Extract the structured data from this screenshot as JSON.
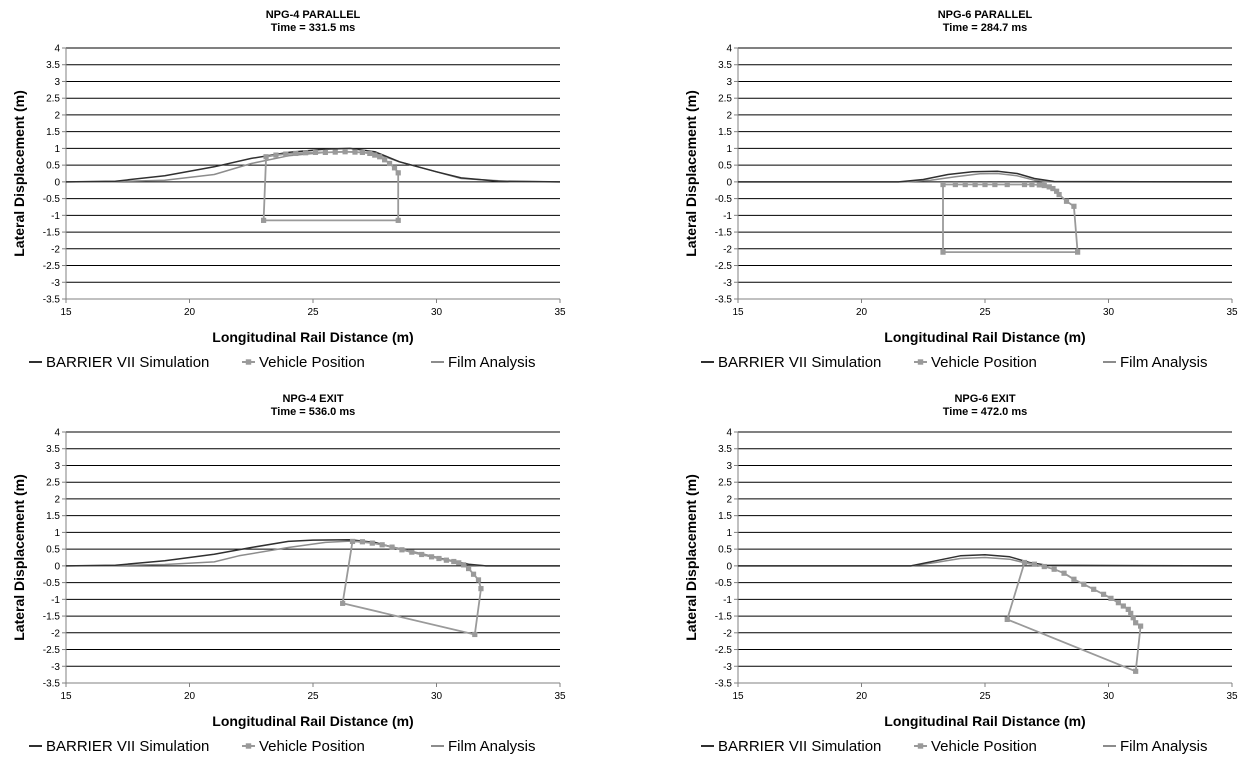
{
  "colors": {
    "simulation": "#303030",
    "vehicle": "#9a9a9a",
    "film": "#8c8c8c",
    "grid": "#000000",
    "axis": "#808080"
  },
  "chart_data": [
    {
      "type": "line",
      "title": "NPG-4 PARALLEL",
      "subtitle": "Time = 331.5 ms",
      "xlabel": "Longitudinal Rail Distance (m)",
      "ylabel": "Lateral Displacement (m)",
      "xlim": [
        15,
        35
      ],
      "ylim": [
        -3.5,
        4
      ],
      "x_ticks": [
        "15",
        "20",
        "25",
        "30",
        "35"
      ],
      "y_ticks": [
        "4",
        "3.5",
        "3",
        "2.5",
        "2",
        "1.5",
        "1",
        "0.5",
        "0",
        "-0.5",
        "-1",
        "-1.5",
        "-2",
        "-2.5",
        "-3",
        "-3.5"
      ],
      "grid": "horizontal",
      "legend_position": "bottom",
      "legend": [
        "BARRIER VII Simulation",
        "Vehicle Position",
        "Film Analysis"
      ],
      "series": [
        {
          "name": "BARRIER VII Simulation",
          "points": [
            [
              15,
              0
            ],
            [
              17,
              0.02
            ],
            [
              19,
              0.18
            ],
            [
              21,
              0.45
            ],
            [
              22.5,
              0.7
            ],
            [
              24,
              0.88
            ],
            [
              25.5,
              0.98
            ],
            [
              26.5,
              1.0
            ],
            [
              27.5,
              0.9
            ],
            [
              28.5,
              0.6
            ],
            [
              30,
              0.3
            ],
            [
              31,
              0.12
            ],
            [
              32.5,
              0.02
            ],
            [
              35,
              0
            ]
          ]
        },
        {
          "name": "Vehicle Position",
          "points": [
            [
              23.1,
              0.75
            ],
            [
              23.5,
              0.8
            ],
            [
              23.9,
              0.83
            ],
            [
              24.3,
              0.85
            ],
            [
              24.7,
              0.87
            ],
            [
              25.1,
              0.88
            ],
            [
              25.5,
              0.88
            ],
            [
              25.9,
              0.89
            ],
            [
              26.3,
              0.9
            ],
            [
              26.7,
              0.89
            ],
            [
              27.0,
              0.88
            ],
            [
              27.3,
              0.85
            ],
            [
              27.5,
              0.8
            ],
            [
              27.7,
              0.75
            ],
            [
              27.9,
              0.66
            ],
            [
              28.1,
              0.55
            ],
            [
              28.3,
              0.42
            ],
            [
              28.45,
              0.27
            ],
            [
              28.45,
              -1.15
            ],
            [
              23.0,
              -1.15
            ],
            [
              23.1,
              0.75
            ]
          ]
        },
        {
          "name": "Film Analysis",
          "points": [
            [
              15,
              0
            ],
            [
              17,
              0.01
            ],
            [
              19,
              0.05
            ],
            [
              21,
              0.22
            ],
            [
              22.5,
              0.55
            ],
            [
              24,
              0.78
            ],
            [
              25.5,
              0.88
            ],
            [
              26.5,
              0.9
            ],
            [
              27.5,
              0.85
            ],
            [
              28.5,
              0.6
            ],
            [
              30,
              0.3
            ],
            [
              31,
              0.1
            ],
            [
              33,
              0.01
            ],
            [
              35,
              0
            ]
          ]
        }
      ]
    },
    {
      "type": "line",
      "title": "NPG-6 PARALLEL",
      "subtitle": "Time = 284.7 ms",
      "xlabel": "Longitudinal Rail Distance (m)",
      "ylabel": "Lateral Displacement (m)",
      "xlim": [
        15,
        35
      ],
      "ylim": [
        -3.5,
        4
      ],
      "x_ticks": [
        "15",
        "20",
        "25",
        "30",
        "35"
      ],
      "y_ticks": [
        "4",
        "3.5",
        "3",
        "2.5",
        "2",
        "1.5",
        "1",
        "0.5",
        "0",
        "-0.5",
        "-1",
        "-1.5",
        "-2",
        "-2.5",
        "-3",
        "-3.5"
      ],
      "grid": "horizontal",
      "legend_position": "bottom",
      "legend": [
        "BARRIER VII Simulation",
        "Vehicle Position",
        "Film Analysis"
      ],
      "series": [
        {
          "name": "BARRIER VII Simulation",
          "points": [
            [
              15,
              0
            ],
            [
              21.5,
              0
            ],
            [
              22.5,
              0.07
            ],
            [
              23.5,
              0.22
            ],
            [
              24.5,
              0.3
            ],
            [
              25.5,
              0.32
            ],
            [
              26.3,
              0.25
            ],
            [
              27.0,
              0.1
            ],
            [
              27.8,
              0.01
            ],
            [
              35,
              0
            ]
          ]
        },
        {
          "name": "Vehicle Position",
          "points": [
            [
              23.3,
              -0.08
            ],
            [
              23.8,
              -0.08
            ],
            [
              24.2,
              -0.08
            ],
            [
              24.6,
              -0.08
            ],
            [
              25.0,
              -0.08
            ],
            [
              25.4,
              -0.08
            ],
            [
              25.9,
              -0.08
            ],
            [
              26.6,
              -0.08
            ],
            [
              26.9,
              -0.08
            ],
            [
              27.2,
              -0.09
            ],
            [
              27.4,
              -0.11
            ],
            [
              27.6,
              -0.15
            ],
            [
              27.75,
              -0.2
            ],
            [
              27.9,
              -0.28
            ],
            [
              28.0,
              -0.38
            ],
            [
              28.3,
              -0.58
            ],
            [
              28.6,
              -0.73
            ],
            [
              28.75,
              -2.1
            ],
            [
              23.3,
              -2.1
            ],
            [
              23.3,
              -0.08
            ]
          ]
        },
        {
          "name": "Film Analysis",
          "points": [
            [
              15,
              0
            ],
            [
              21.8,
              0
            ],
            [
              22.8,
              0.05
            ],
            [
              23.8,
              0.15
            ],
            [
              24.8,
              0.24
            ],
            [
              25.5,
              0.25
            ],
            [
              26.3,
              0.18
            ],
            [
              27.0,
              0.05
            ],
            [
              27.6,
              0
            ],
            [
              35,
              0
            ]
          ]
        }
      ]
    },
    {
      "type": "line",
      "title": "NPG-4 EXIT",
      "subtitle": "Time = 536.0 ms",
      "xlabel": "Longitudinal Rail Distance (m)",
      "ylabel": "Lateral Displacement (m)",
      "xlim": [
        15,
        35
      ],
      "ylim": [
        -3.5,
        4
      ],
      "x_ticks": [
        "15",
        "20",
        "25",
        "30",
        "35"
      ],
      "y_ticks": [
        "4",
        "3.5",
        "3",
        "2.5",
        "2",
        "1.5",
        "1",
        "0.5",
        "0",
        "-0.5",
        "-1",
        "-1.5",
        "-2",
        "-2.5",
        "-3",
        "-3.5"
      ],
      "grid": "horizontal",
      "legend_position": "bottom",
      "legend": [
        "BARRIER VII Simulation",
        "Vehicle Position",
        "Film Analysis"
      ],
      "series": [
        {
          "name": "BARRIER VII Simulation",
          "points": [
            [
              15,
              0
            ],
            [
              17,
              0.02
            ],
            [
              19,
              0.15
            ],
            [
              21,
              0.35
            ],
            [
              22.5,
              0.55
            ],
            [
              24,
              0.73
            ],
            [
              25,
              0.77
            ],
            [
              26.5,
              0.78
            ],
            [
              27.5,
              0.7
            ],
            [
              28.5,
              0.5
            ],
            [
              29.5,
              0.32
            ],
            [
              30.5,
              0.17
            ],
            [
              31.3,
              0.05
            ],
            [
              32,
              0
            ],
            [
              35,
              0
            ]
          ]
        },
        {
          "name": "Vehicle Position",
          "points": [
            [
              26.6,
              0.73
            ],
            [
              27.0,
              0.72
            ],
            [
              27.4,
              0.68
            ],
            [
              27.8,
              0.63
            ],
            [
              28.2,
              0.56
            ],
            [
              28.6,
              0.48
            ],
            [
              29.0,
              0.41
            ],
            [
              29.4,
              0.34
            ],
            [
              29.8,
              0.27
            ],
            [
              30.1,
              0.22
            ],
            [
              30.4,
              0.17
            ],
            [
              30.7,
              0.13
            ],
            [
              30.9,
              0.09
            ],
            [
              31.1,
              0.03
            ],
            [
              31.3,
              -0.08
            ],
            [
              31.5,
              -0.25
            ],
            [
              31.7,
              -0.42
            ],
            [
              31.8,
              -0.68
            ],
            [
              31.55,
              -2.05
            ],
            [
              26.2,
              -1.12
            ],
            [
              26.6,
              0.73
            ]
          ]
        },
        {
          "name": "Film Analysis",
          "points": [
            [
              15,
              0
            ],
            [
              17,
              0.01
            ],
            [
              19,
              0.04
            ],
            [
              21,
              0.12
            ],
            [
              22,
              0.3
            ],
            [
              24,
              0.55
            ],
            [
              25.5,
              0.7
            ],
            [
              26.5,
              0.74
            ],
            [
              27.5,
              0.68
            ],
            [
              28.5,
              0.52
            ],
            [
              29.5,
              0.35
            ],
            [
              30.5,
              0.17
            ],
            [
              31.3,
              0.03
            ],
            [
              32,
              0
            ],
            [
              35,
              0
            ]
          ]
        }
      ]
    },
    {
      "type": "line",
      "title": "NPG-6 EXIT",
      "subtitle": "Time = 472.0 ms",
      "xlabel": "Longitudinal Rail Distance (m)",
      "ylabel": "Lateral Displacement (m)",
      "xlim": [
        15,
        35
      ],
      "ylim": [
        -3.5,
        4
      ],
      "x_ticks": [
        "15",
        "20",
        "25",
        "30",
        "35"
      ],
      "y_ticks": [
        "4",
        "3.5",
        "3",
        "2.5",
        "2",
        "1.5",
        "1",
        "0.5",
        "0",
        "-0.5",
        "-1",
        "-1.5",
        "-2",
        "-2.5",
        "-3",
        "-3.5"
      ],
      "grid": "horizontal",
      "legend_position": "bottom",
      "legend": [
        "BARRIER VII Simulation",
        "Vehicle Position",
        "Film Analysis"
      ],
      "series": [
        {
          "name": "BARRIER VII Simulation",
          "points": [
            [
              15,
              0
            ],
            [
              22,
              0
            ],
            [
              23,
              0.15
            ],
            [
              24,
              0.3
            ],
            [
              25,
              0.33
            ],
            [
              26,
              0.27
            ],
            [
              26.8,
              0.1
            ],
            [
              27.5,
              0.02
            ],
            [
              35,
              0
            ]
          ]
        },
        {
          "name": "Vehicle Position",
          "points": [
            [
              26.6,
              0.1
            ],
            [
              27.0,
              0.05
            ],
            [
              27.4,
              -0.02
            ],
            [
              27.8,
              -0.1
            ],
            [
              28.2,
              -0.22
            ],
            [
              28.6,
              -0.4
            ],
            [
              29.0,
              -0.55
            ],
            [
              29.4,
              -0.7
            ],
            [
              29.8,
              -0.85
            ],
            [
              30.1,
              -0.97
            ],
            [
              30.4,
              -1.1
            ],
            [
              30.6,
              -1.2
            ],
            [
              30.8,
              -1.3
            ],
            [
              30.9,
              -1.42
            ],
            [
              31.0,
              -1.55
            ],
            [
              31.1,
              -1.7
            ],
            [
              31.3,
              -1.8
            ],
            [
              31.1,
              -3.15
            ],
            [
              25.9,
              -1.6
            ],
            [
              26.6,
              0.1
            ]
          ]
        },
        {
          "name": "Film Analysis",
          "points": [
            [
              15,
              0
            ],
            [
              22,
              0
            ],
            [
              23,
              0.1
            ],
            [
              24,
              0.22
            ],
            [
              25,
              0.25
            ],
            [
              26,
              0.2
            ],
            [
              26.8,
              0.06
            ],
            [
              27.5,
              0
            ],
            [
              35,
              0
            ]
          ]
        }
      ]
    }
  ]
}
